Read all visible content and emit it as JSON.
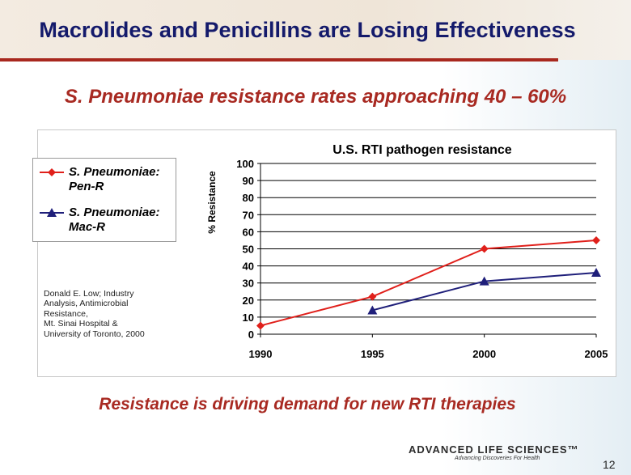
{
  "slide": {
    "title": "Macrolides and Penicillins are Losing Effectiveness",
    "subtitle": "S. Pneumoniae resistance rates approaching 40 – 60%",
    "source_lines": [
      "Donald E. Low; Industry",
      "Analysis, Antimicrobial",
      "Resistance,",
      "Mt. Sinai Hospital &",
      "University of Toronto, 2000"
    ],
    "conclusion": "Resistance is driving demand for new RTI therapies",
    "logo": "ADVANCED LIFE SCIENCES™",
    "tagline": "Advancing Discoveries For Health",
    "page_number": "12"
  },
  "chart_data": {
    "type": "line",
    "title": "U.S. RTI pathogen resistance",
    "y_label": "% Resistance",
    "x": [
      1990,
      1995,
      2000,
      2005
    ],
    "series": [
      {
        "name": "S. Pneumoniae: Pen-R",
        "color": "#e0201b",
        "marker": "diamond",
        "values": [
          5,
          22,
          50,
          55
        ]
      },
      {
        "name": "S. Pneumoniae: Mac-R",
        "color": "#1f1f7a",
        "marker": "triangle",
        "values": [
          null,
          14,
          31,
          36
        ]
      }
    ],
    "xlim": [
      1990,
      2005
    ],
    "xticks": [
      1990,
      1995,
      2000,
      2005
    ],
    "ylim": [
      0,
      100
    ],
    "yticks": [
      0,
      10,
      20,
      30,
      40,
      50,
      60,
      70,
      80,
      90,
      100
    ],
    "grid": true,
    "legend": "left"
  }
}
